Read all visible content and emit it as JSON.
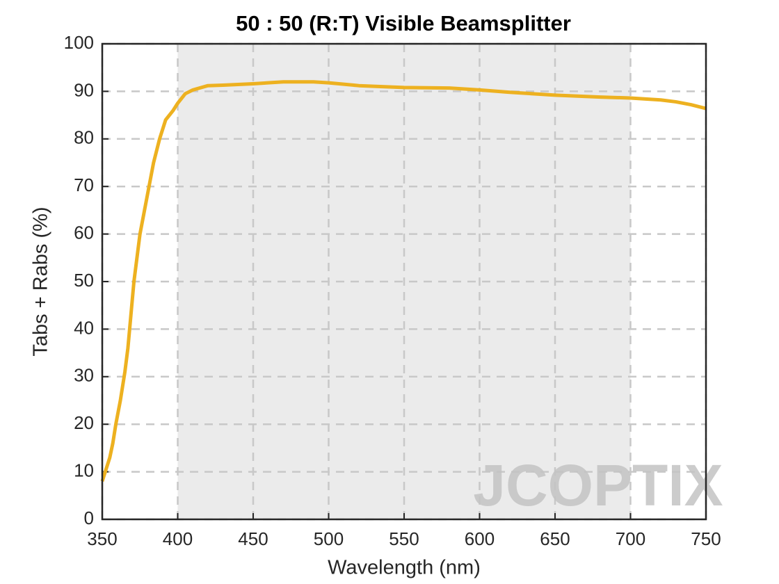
{
  "chart_data": {
    "type": "line",
    "title": "50 : 50 (R:T) Visible Beamsplitter",
    "x_label": "Wavelength (nm)",
    "y_label": "Tabs + Rabs (%)",
    "watermark": "JCOPTIX",
    "x": [
      350,
      352,
      355,
      357,
      359,
      362,
      365,
      367,
      369,
      371,
      373,
      375,
      378,
      381,
      384,
      388,
      392,
      397,
      400,
      405,
      410,
      420,
      430,
      450,
      470,
      490,
      500,
      520,
      550,
      580,
      600,
      620,
      650,
      680,
      700,
      720,
      730,
      740,
      750
    ],
    "series": [
      {
        "name": "Tabs + Rabs",
        "color": "#edb120",
        "values": [
          8,
          10,
          13,
          16,
          20,
          25,
          31,
          36,
          43,
          50,
          55,
          60,
          65,
          70,
          75,
          80,
          84,
          86,
          87.5,
          89.5,
          90.3,
          91.2,
          91.3,
          91.6,
          92,
          92,
          91.8,
          91.2,
          90.8,
          90.7,
          90.3,
          89.8,
          89.2,
          88.8,
          88.6,
          88.2,
          87.8,
          87.2,
          86.4
        ]
      }
    ],
    "highlight": [
      400,
      700
    ],
    "xlim": [
      350,
      750
    ],
    "ylim": [
      0,
      100
    ],
    "xticks": [
      350,
      400,
      450,
      500,
      550,
      600,
      650,
      700,
      750
    ],
    "yticks": [
      0,
      10,
      20,
      30,
      40,
      50,
      60,
      70,
      80,
      90,
      100
    ],
    "grid": true
  }
}
